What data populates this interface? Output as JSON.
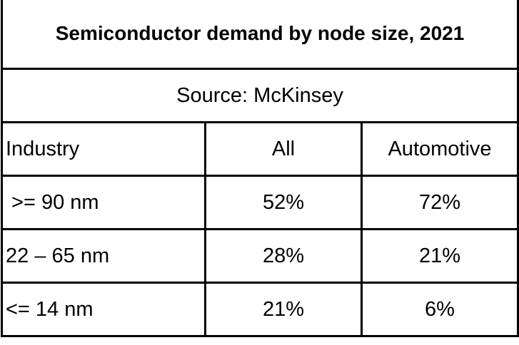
{
  "chart_data": {
    "type": "table",
    "title": "Semiconductor demand by node size, 2021",
    "subtitle": "Source: McKinsey",
    "columns": [
      "Industry",
      "All",
      "Automotive"
    ],
    "rows": [
      {
        "label": " >= 90 nm",
        "all": "52%",
        "automotive": "72%"
      },
      {
        "label": "22 – 65 nm",
        "all": "28%",
        "automotive": "21%"
      },
      {
        "label": "<= 14 nm",
        "all": "21%",
        "automotive": "6%"
      }
    ]
  }
}
